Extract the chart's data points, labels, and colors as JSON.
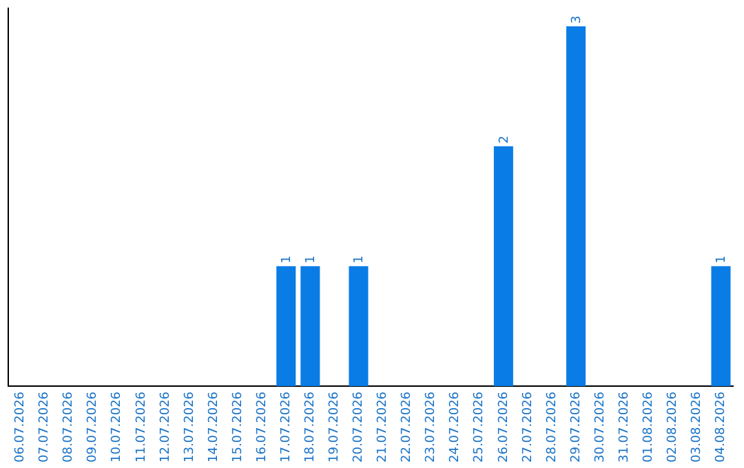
{
  "chart_data": {
    "type": "bar",
    "categories": [
      "06.07.2026",
      "07.07.2026",
      "08.07.2026",
      "09.07.2026",
      "10.07.2026",
      "11.07.2026",
      "12.07.2026",
      "13.07.2026",
      "14.07.2026",
      "15.07.2026",
      "16.07.2026",
      "17.07.2026",
      "18.07.2026",
      "19.07.2026",
      "20.07.2026",
      "21.07.2026",
      "22.07.2026",
      "23.07.2026",
      "24.07.2026",
      "25.07.2026",
      "26.07.2026",
      "27.07.2026",
      "28.07.2026",
      "29.07.2026",
      "30.07.2026",
      "31.07.2026",
      "01.08.2026",
      "02.08.2026",
      "03.08.2026",
      "04.08.2026"
    ],
    "values": [
      0,
      0,
      0,
      0,
      0,
      0,
      0,
      0,
      0,
      0,
      0,
      1,
      1,
      0,
      1,
      0,
      0,
      0,
      0,
      0,
      2,
      0,
      0,
      3,
      0,
      0,
      0,
      0,
      0,
      1
    ],
    "value_labels": [
      null,
      null,
      null,
      null,
      null,
      null,
      null,
      null,
      null,
      null,
      null,
      "1",
      "1",
      null,
      "1",
      null,
      null,
      null,
      null,
      null,
      "2",
      null,
      null,
      "3",
      null,
      null,
      null,
      null,
      null,
      "1"
    ],
    "color": "#0a7ce6",
    "ylim": [
      0,
      3.15
    ],
    "grid": false,
    "legend": false
  }
}
